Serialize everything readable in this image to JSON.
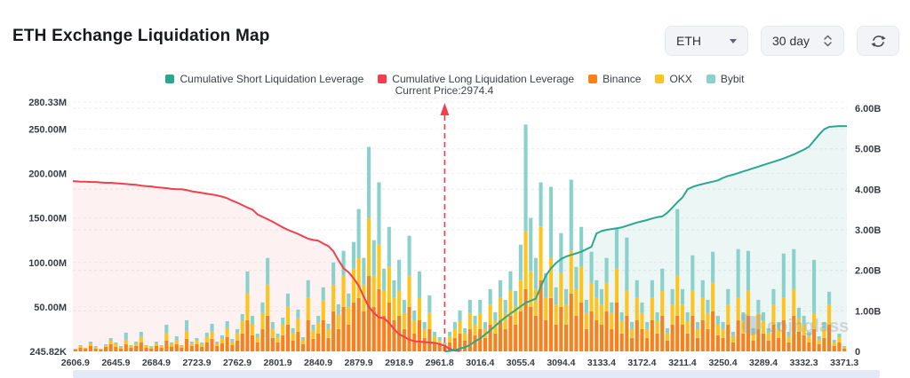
{
  "header": {
    "title": "ETH Exchange Liquidation Map",
    "symbol": "ETH",
    "period": "30 day"
  },
  "legend": {
    "items": [
      {
        "label": "Cumulative Short Liquidation Leverage",
        "color": "#2aa88f"
      },
      {
        "label": "Cumulative Long Liquidation Leverage",
        "color": "#f23f4d"
      },
      {
        "label": "Binance",
        "color": "#f7811a"
      },
      {
        "label": "OKX",
        "color": "#fdc41f"
      },
      {
        "label": "Bybit",
        "color": "#8ad1cb"
      }
    ]
  },
  "watermark": "coinglass",
  "chart_data": {
    "type": "bar",
    "stacked": true,
    "n_bins": 153,
    "x_tick_every_bins": 8,
    "x_tick_labels": [
      "2606.9",
      "2645.9",
      "2684.9",
      "2723.9",
      "2762.9",
      "2801.9",
      "2840.9",
      "2879.9",
      "2918.9",
      "2961.8",
      "3016.4",
      "3055.4",
      "3094.4",
      "3133.4",
      "3172.4",
      "3211.4",
      "3250.4",
      "3289.4",
      "3332.3",
      "3371.3"
    ],
    "left_axis": {
      "unit": "M",
      "max": 280.33,
      "tick_labels": [
        "280.33M",
        "250.00M",
        "200.00M",
        "150.00M",
        "100.00M",
        "50.00M",
        "245.82K"
      ],
      "tick_values": [
        280.33,
        250,
        200,
        150,
        100,
        50,
        0.246
      ]
    },
    "right_axis": {
      "unit": "B",
      "max": 6,
      "tick_labels": [
        "6.00B",
        "5.00B",
        "4.00B",
        "3.00B",
        "2.00B",
        "1.00B",
        "0"
      ],
      "tick_values": [
        6,
        5,
        4,
        3,
        2,
        1,
        0
      ]
    },
    "current_price": {
      "label": "Current Price:2974.4",
      "value": 2974.4,
      "bin": 73
    },
    "series": [
      {
        "name": "Binance",
        "type": "bar",
        "axis": "left",
        "color": "#f7811a",
        "values": [
          2,
          4,
          3,
          6,
          3,
          2,
          5,
          8,
          5,
          3,
          8,
          4,
          6,
          10,
          4,
          3,
          6,
          4,
          12,
          5,
          8,
          4,
          14,
          6,
          8,
          5,
          10,
          14,
          6,
          9,
          16,
          7,
          12,
          20,
          35,
          18,
          10,
          25,
          40,
          15,
          10,
          18,
          30,
          12,
          22,
          8,
          35,
          14,
          20,
          35,
          15,
          45,
          25,
          50,
          30,
          55,
          60,
          45,
          85,
          50,
          70,
          40,
          55,
          35,
          40,
          25,
          50,
          20,
          35,
          15,
          25,
          10,
          8,
          5,
          10,
          15,
          20,
          12,
          25,
          18,
          25,
          15,
          30,
          20,
          35,
          25,
          40,
          30,
          45,
          70,
          50,
          40,
          80,
          35,
          60,
          30,
          50,
          30,
          65,
          40,
          55,
          25,
          45,
          35,
          30,
          45,
          25,
          55,
          20,
          40,
          15,
          35,
          25,
          15,
          35,
          20,
          40,
          12,
          30,
          40,
          30,
          20,
          40,
          15,
          35,
          25,
          45,
          18,
          15,
          30,
          10,
          35,
          20,
          40,
          12,
          25,
          20,
          12,
          30,
          15,
          35,
          10,
          40,
          22,
          18,
          10,
          25,
          8,
          15,
          30,
          6,
          10,
          3
        ]
      },
      {
        "name": "OKX",
        "type": "bar",
        "axis": "left",
        "color": "#fdc41f",
        "values": [
          1,
          2,
          1,
          3,
          2,
          1,
          2,
          4,
          3,
          2,
          5,
          2,
          3,
          6,
          2,
          2,
          3,
          2,
          8,
          3,
          5,
          2,
          9,
          3,
          4,
          3,
          6,
          8,
          3,
          5,
          10,
          4,
          8,
          14,
          30,
          12,
          6,
          18,
          35,
          10,
          6,
          12,
          20,
          8,
          15,
          5,
          25,
          9,
          12,
          22,
          10,
          30,
          16,
          35,
          20,
          38,
          45,
          30,
          65,
          35,
          50,
          28,
          40,
          25,
          28,
          18,
          35,
          14,
          25,
          10,
          18,
          7,
          5,
          3,
          7,
          10,
          14,
          8,
          18,
          12,
          18,
          10,
          22,
          14,
          25,
          18,
          28,
          20,
          35,
          65,
          40,
          30,
          60,
          25,
          45,
          22,
          38,
          22,
          48,
          30,
          40,
          18,
          32,
          25,
          22,
          32,
          18,
          38,
          14,
          28,
          10,
          25,
          18,
          10,
          25,
          14,
          28,
          8,
          22,
          45,
          22,
          14,
          28,
          10,
          25,
          18,
          32,
          12,
          10,
          22,
          7,
          25,
          14,
          28,
          8,
          18,
          14,
          8,
          22,
          10,
          25,
          7,
          30,
          15,
          12,
          7,
          18,
          5,
          10,
          22,
          4,
          6,
          2
        ]
      },
      {
        "name": "Bybit",
        "type": "bar",
        "axis": "left",
        "color": "#8ad1cb",
        "values": [
          0,
          1,
          0,
          2,
          1,
          0,
          1,
          3,
          2,
          1,
          8,
          1,
          2,
          6,
          1,
          1,
          2,
          1,
          10,
          2,
          4,
          1,
          12,
          2,
          3,
          2,
          5,
          9,
          2,
          4,
          8,
          3,
          5,
          8,
          25,
          10,
          4,
          12,
          30,
          8,
          4,
          8,
          15,
          6,
          10,
          3,
          20,
          7,
          8,
          15,
          6,
          25,
          12,
          28,
          15,
          30,
          55,
          30,
          80,
          40,
          70,
          25,
          45,
          20,
          35,
          15,
          45,
          12,
          30,
          8,
          20,
          5,
          3,
          2,
          5,
          8,
          12,
          6,
          15,
          10,
          15,
          8,
          18,
          10,
          20,
          15,
          22,
          18,
          40,
          120,
          60,
          35,
          50,
          28,
          80,
          20,
          45,
          18,
          80,
          25,
          45,
          15,
          35,
          20,
          18,
          28,
          12,
          45,
          10,
          60,
          8,
          20,
          12,
          8,
          20,
          10,
          25,
          6,
          18,
          75,
          18,
          10,
          40,
          8,
          20,
          15,
          35,
          10,
          8,
          18,
          5,
          55,
          10,
          45,
          6,
          15,
          10,
          6,
          18,
          8,
          50,
          5,
          45,
          12,
          10,
          5,
          60,
          4,
          8,
          15,
          3,
          4,
          1
        ]
      },
      {
        "name": "Cumulative Long Liquidation Leverage",
        "type": "line",
        "axis": "right",
        "color": "#f23f4d",
        "fill": "rgba(242,63,77,0.07)",
        "start_bin": 0,
        "values": [
          4.2,
          4.19,
          4.19,
          4.18,
          4.18,
          4.17,
          4.16,
          4.16,
          4.15,
          4.14,
          4.13,
          4.12,
          4.11,
          4.09,
          4.08,
          4.07,
          4.05,
          4.04,
          4.03,
          4.01,
          4.0,
          4.0,
          3.98,
          3.95,
          3.93,
          3.91,
          3.89,
          3.87,
          3.85,
          3.82,
          3.78,
          3.72,
          3.67,
          3.61,
          3.55,
          3.5,
          3.38,
          3.32,
          3.26,
          3.2,
          3.13,
          3.06,
          3.0,
          2.95,
          2.9,
          2.84,
          2.78,
          2.75,
          2.73,
          2.66,
          2.6,
          2.47,
          2.25,
          2.05,
          1.95,
          1.8,
          1.62,
          1.35,
          1.1,
          0.95,
          0.84,
          0.82,
          0.7,
          0.55,
          0.42,
          0.36,
          0.29,
          0.25,
          0.24,
          0.23,
          0.22,
          0.21,
          0.18,
          0.14,
          0.06,
          0.02,
          0.01
        ]
      },
      {
        "name": "Cumulative Short Liquidation Leverage",
        "type": "line",
        "axis": "right",
        "color": "#2aa88f",
        "fill": "rgba(42,168,143,0.09)",
        "start_bin": 73,
        "values": [
          0.0,
          0.01,
          0.03,
          0.07,
          0.1,
          0.16,
          0.25,
          0.32,
          0.42,
          0.52,
          0.63,
          0.74,
          0.84,
          0.93,
          1.02,
          1.11,
          1.2,
          1.25,
          1.3,
          1.6,
          1.87,
          2.05,
          2.18,
          2.28,
          2.34,
          2.38,
          2.42,
          2.46,
          2.52,
          2.58,
          2.91,
          2.97,
          3.0,
          3.02,
          3.04,
          3.06,
          3.1,
          3.14,
          3.18,
          3.21,
          3.24,
          3.28,
          3.31,
          3.33,
          3.42,
          3.55,
          3.68,
          3.8,
          4.0,
          4.06,
          4.1,
          4.13,
          4.16,
          4.19,
          4.22,
          4.28,
          4.33,
          4.36,
          4.4,
          4.44,
          4.48,
          4.52,
          4.56,
          4.6,
          4.64,
          4.68,
          4.72,
          4.76,
          4.81,
          4.86,
          4.92,
          4.98,
          5.05,
          5.2,
          5.35,
          5.48,
          5.54,
          5.55,
          5.56,
          5.56
        ]
      }
    ]
  }
}
